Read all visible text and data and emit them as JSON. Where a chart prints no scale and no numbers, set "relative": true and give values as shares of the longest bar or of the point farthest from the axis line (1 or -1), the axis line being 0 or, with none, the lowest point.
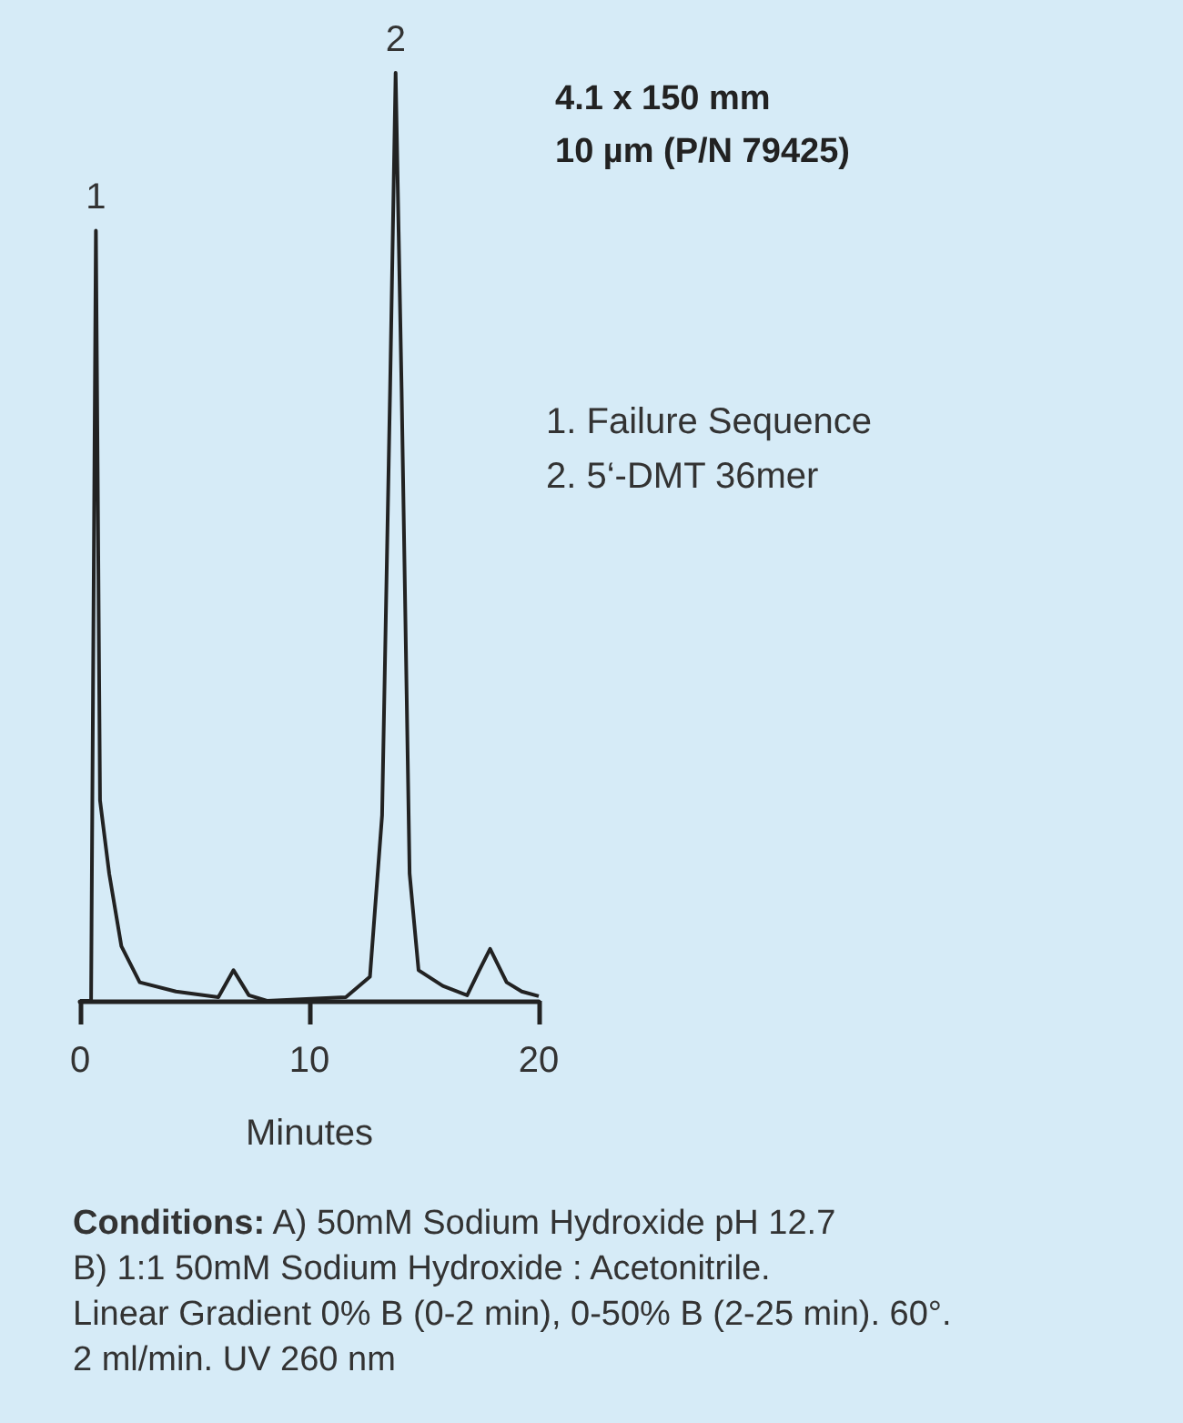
{
  "chart_data": {
    "type": "line",
    "title": "4.1 x 150 mm",
    "subtitle": "10 µm (P/N 79425)",
    "xlabel": "Minutes",
    "relative": true,
    "xlim": [
      0,
      20
    ],
    "xticks": [
      0,
      10,
      20
    ],
    "x": [
      0,
      0.48,
      0.69,
      0.87,
      1.27,
      1.8,
      2.6,
      4.18,
      6.03,
      6.69,
      7.36,
      8.15,
      11.59,
      12.64,
      13.17,
      13.52,
      13.76,
      14.02,
      14.37,
      14.76,
      15.82,
      16.88,
      17.41,
      17.88,
      18.6,
      19.26,
      20
    ],
    "series": [
      {
        "color": "#222222",
        "values": [
          0,
          0,
          0.83,
          0.216,
          0.137,
          0.059,
          0.02,
          0.01,
          0.004,
          0.033,
          0.006,
          0,
          0.004,
          0.026,
          0.2,
          0.66,
          1,
          0.66,
          0.137,
          0.033,
          0.016,
          0.006,
          0.033,
          0.056,
          0.02,
          0.01,
          0.005
        ]
      }
    ],
    "annotations": [
      {
        "text": "1",
        "x": 0.69,
        "y": 0.83
      },
      {
        "text": "2",
        "x": 13.76,
        "y": 1
      },
      "1. Failure Sequence",
      "2. 5‘-DMT 36mer",
      "Conditions: A) 50mM Sodium Hydroxide pH 12.7\nB) 1:1 50mM Sodium Hydroxide : Acetonitrile.\nLinear Gradient 0% B (0-2 min), 0-50% B (2-25 min). 60°.\n2 ml/min. UV 260 nm"
    ]
  }
}
